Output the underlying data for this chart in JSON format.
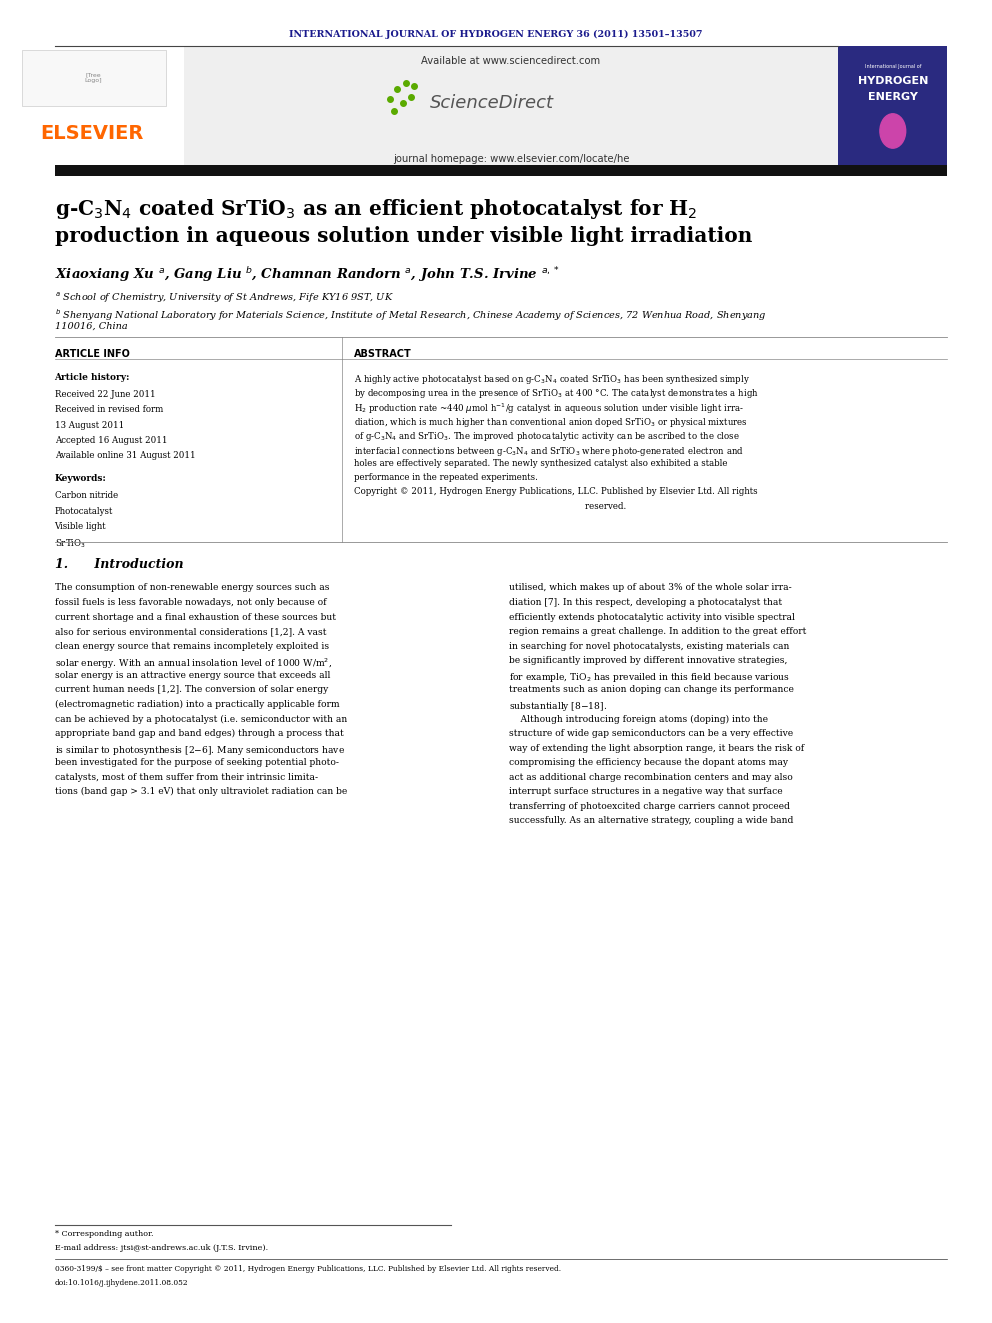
{
  "page_width": 9.92,
  "page_height": 13.23,
  "bg_color": "#ffffff",
  "journal_header": "INTERNATIONAL JOURNAL OF HYDROGEN ENERGY 36 (2011) 13501–13507",
  "journal_header_color": "#1a1a8c",
  "header_url_text": "Available at www.sciencedirect.com",
  "journal_homepage": "journal homepage: www.elsevier.com/locate/he",
  "elsevier_color": "#ff6600",
  "elsevier_text": "ELSEVIER",
  "sciencedirect_text": "ScienceDirect",
  "title_color": "#000000",
  "article_info_title": "ARTICLE INFO",
  "abstract_title": "ABSTRACT",
  "article_history_title": "Article history:",
  "received1": "Received 22 June 2011",
  "received2": "Received in revised form",
  "received2b": "13 August 2011",
  "accepted": "Accepted 16 August 2011",
  "available": "Available online 31 August 2011",
  "keywords_title": "Keywords:",
  "keyword1": "Carbon nitride",
  "keyword2": "Photocatalyst",
  "keyword3": "Visible light",
  "keyword4": "SrTiO₃",
  "section1_title": "1.      Introduction",
  "footnote_star": "* Corresponding author.",
  "footnote_email": "E-mail address: jtsi@st-andrews.ac.uk (J.T.S. Irvine).",
  "footnote_issn": "0360-3199/$ – see front matter Copyright © 2011, Hydrogen Energy Publications, LLC. Published by Elsevier Ltd. All rights reserved.",
  "footnote_doi": "doi:10.1016/j.ijhydene.2011.08.052",
  "gray_box_color": "#efefef",
  "lm": 0.055,
  "rm": 0.955,
  "col_split": 0.345,
  "mid_col": 0.505
}
